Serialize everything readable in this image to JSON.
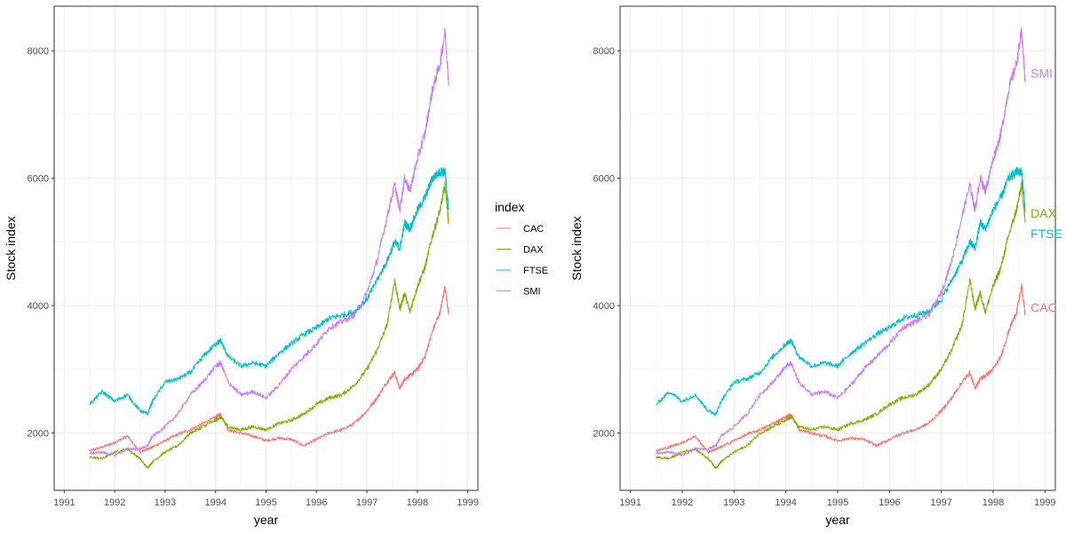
{
  "chart_data": [
    {
      "type": "line",
      "title": "",
      "xlabel": "year",
      "ylabel": "Stock index",
      "xlim": [
        1990.8,
        1999.2
      ],
      "ylim": [
        1100,
        8700
      ],
      "x_ticks": [
        1991,
        1992,
        1993,
        1994,
        1995,
        1996,
        1997,
        1998,
        1999
      ],
      "y_ticks": [
        2000,
        4000,
        6000,
        8000
      ],
      "grid": true,
      "legend": {
        "title": "index",
        "placement": "right",
        "entries": [
          "CAC",
          "DAX",
          "FTSE",
          "SMI"
        ]
      },
      "x": [
        1991.5,
        1991.75,
        1992.0,
        1992.25,
        1992.5,
        1992.65,
        1992.75,
        1993.0,
        1993.25,
        1993.5,
        1993.75,
        1994.0,
        1994.1,
        1994.25,
        1994.5,
        1994.75,
        1995.0,
        1995.25,
        1995.5,
        1995.75,
        1996.0,
        1996.25,
        1996.5,
        1996.75,
        1997.0,
        1997.2,
        1997.4,
        1997.55,
        1997.65,
        1997.75,
        1997.85,
        1998.0,
        1998.15,
        1998.3,
        1998.45,
        1998.55,
        1998.62
      ],
      "series": [
        {
          "name": "CAC",
          "color": "#F8766D",
          "values": [
            1720,
            1780,
            1850,
            1950,
            1700,
            1750,
            1780,
            1880,
            1980,
            2050,
            2150,
            2250,
            2300,
            2050,
            2000,
            1950,
            1880,
            1920,
            1900,
            1800,
            1900,
            2000,
            2050,
            2150,
            2350,
            2550,
            2800,
            2950,
            2700,
            2850,
            2900,
            3000,
            3200,
            3600,
            3900,
            4300,
            3850
          ]
        },
        {
          "name": "DAX",
          "color": "#7CAE00",
          "values": [
            1620,
            1600,
            1700,
            1750,
            1600,
            1450,
            1550,
            1700,
            1800,
            2000,
            2100,
            2200,
            2250,
            2100,
            2050,
            2100,
            2050,
            2150,
            2200,
            2300,
            2450,
            2550,
            2600,
            2750,
            3000,
            3300,
            3700,
            4400,
            3950,
            4200,
            3900,
            4300,
            4600,
            5100,
            5500,
            5900,
            5300
          ]
        },
        {
          "name": "FTSE",
          "color": "#00BFC4",
          "values": [
            2450,
            2650,
            2500,
            2600,
            2350,
            2300,
            2500,
            2800,
            2850,
            2950,
            3200,
            3400,
            3450,
            3200,
            3050,
            3100,
            3050,
            3250,
            3400,
            3550,
            3650,
            3800,
            3850,
            3900,
            4100,
            4400,
            4700,
            5000,
            4900,
            5300,
            5200,
            5500,
            5700,
            6000,
            6100,
            6100,
            5500
          ]
        },
        {
          "name": "SMI",
          "color": "#C77CFF",
          "values": [
            1680,
            1700,
            1650,
            1750,
            1750,
            1800,
            1950,
            2100,
            2300,
            2600,
            2800,
            3050,
            3100,
            2800,
            2600,
            2650,
            2550,
            2750,
            3000,
            3200,
            3400,
            3650,
            3750,
            3850,
            4200,
            4700,
            5400,
            5900,
            5500,
            6000,
            5800,
            6300,
            6700,
            7400,
            7800,
            8300,
            7500
          ]
        }
      ]
    },
    {
      "type": "line",
      "title": "",
      "xlabel": "year",
      "ylabel": "Stock index",
      "xlim": [
        1990.8,
        1999.2
      ],
      "ylim": [
        1100,
        8700
      ],
      "x_ticks": [
        1991,
        1992,
        1993,
        1994,
        1995,
        1996,
        1997,
        1998,
        1999
      ],
      "y_ticks": [
        2000,
        4000,
        6000,
        8000
      ],
      "grid": true,
      "legend": null,
      "end_labels": [
        {
          "text": "SMI",
          "value": 7650,
          "color": "#C77CFF"
        },
        {
          "text": "DAX",
          "value": 5450,
          "color": "#7CAE00"
        },
        {
          "text": "FTSE",
          "value": 5130,
          "color": "#00BFC4"
        },
        {
          "text": "CAC",
          "value": 3970,
          "color": "#F8766D"
        }
      ],
      "x": [
        1991.5,
        1991.75,
        1992.0,
        1992.25,
        1992.5,
        1992.65,
        1992.75,
        1993.0,
        1993.25,
        1993.5,
        1993.75,
        1994.0,
        1994.1,
        1994.25,
        1994.5,
        1994.75,
        1995.0,
        1995.25,
        1995.5,
        1995.75,
        1996.0,
        1996.25,
        1996.5,
        1996.75,
        1997.0,
        1997.2,
        1997.4,
        1997.55,
        1997.65,
        1997.75,
        1997.85,
        1998.0,
        1998.15,
        1998.3,
        1998.45,
        1998.55,
        1998.62
      ],
      "series": [
        {
          "name": "CAC",
          "color": "#F8766D",
          "values": [
            1720,
            1780,
            1850,
            1950,
            1700,
            1750,
            1780,
            1880,
            1980,
            2050,
            2150,
            2250,
            2300,
            2050,
            2000,
            1950,
            1880,
            1920,
            1900,
            1800,
            1900,
            2000,
            2050,
            2150,
            2350,
            2550,
            2800,
            2950,
            2700,
            2850,
            2900,
            3000,
            3200,
            3600,
            3900,
            4300,
            3850
          ]
        },
        {
          "name": "DAX",
          "color": "#7CAE00",
          "values": [
            1620,
            1600,
            1700,
            1750,
            1600,
            1450,
            1550,
            1700,
            1800,
            2000,
            2100,
            2200,
            2250,
            2100,
            2050,
            2100,
            2050,
            2150,
            2200,
            2300,
            2450,
            2550,
            2600,
            2750,
            3000,
            3300,
            3700,
            4400,
            3950,
            4200,
            3900,
            4300,
            4600,
            5100,
            5500,
            5900,
            5300
          ]
        },
        {
          "name": "FTSE",
          "color": "#00BFC4",
          "values": [
            2450,
            2650,
            2500,
            2600,
            2350,
            2300,
            2500,
            2800,
            2850,
            2950,
            3200,
            3400,
            3450,
            3200,
            3050,
            3100,
            3050,
            3250,
            3400,
            3550,
            3650,
            3800,
            3850,
            3900,
            4100,
            4400,
            4700,
            5000,
            4900,
            5300,
            5200,
            5500,
            5700,
            6000,
            6100,
            6100,
            5500
          ]
        },
        {
          "name": "SMI",
          "color": "#C77CFF",
          "values": [
            1680,
            1700,
            1650,
            1750,
            1750,
            1800,
            1950,
            2100,
            2300,
            2600,
            2800,
            3050,
            3100,
            2800,
            2600,
            2650,
            2550,
            2750,
            3000,
            3200,
            3400,
            3650,
            3750,
            3850,
            4200,
            4700,
            5400,
            5900,
            5500,
            6000,
            5800,
            6300,
            6700,
            7400,
            7800,
            8300,
            7500
          ]
        }
      ]
    }
  ]
}
